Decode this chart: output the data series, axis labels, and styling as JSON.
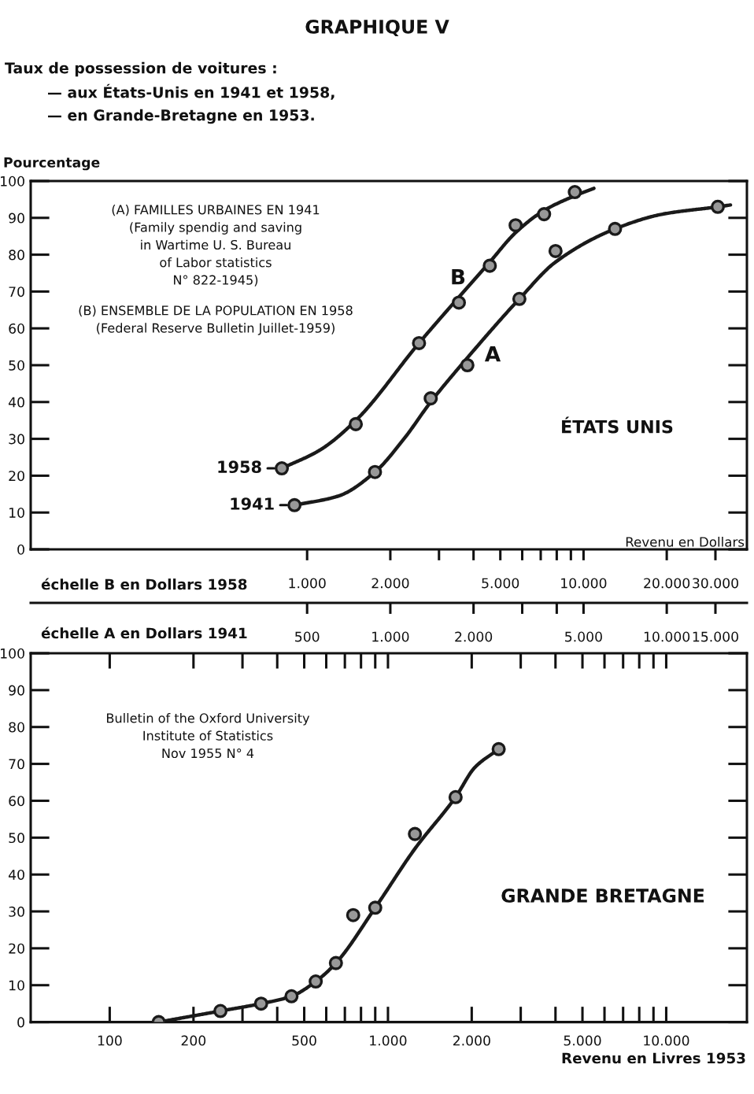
{
  "chart_data": [
    {
      "type": "line",
      "title": "GRAPHIQUE V",
      "subtitle": "Taux de possession de voitures :\n— aux États-Unis en 1941 et 1958,\n— en Grande-Bretagne en 1953.",
      "ylabel": "Pourcentage",
      "xlabel": "échelle B en Dollars 1958",
      "annotations": [
        "(A) FAMILLES URBAINES EN 1941\n(Family spendig and saving\nin Wartime U. S. Bureau\nof Labor statistics\nN° 822-1945)",
        "(B) ENSEMBLE DE LA POPULATION EN 1958\n(Federal Reserve Bulletin Juillet-1959)",
        "ÉTATS UNIS",
        "Revenu en Dollars",
        "B"
      ],
      "series": [
        {
          "name": "1958",
          "type": "scatter",
          "color": "#1a1a1a",
          "marker": "circle",
          "x": [
            810,
            1500,
            2540,
            3540,
            4580,
            5680,
            7200,
            9300
          ],
          "values": [
            22,
            34,
            56,
            67,
            77,
            88,
            91,
            97
          ]
        },
        {
          "color": "#1a1a1a",
          "x": [
            810,
            1115,
            1500,
            2540,
            4580,
            5680,
            7200,
            9300,
            10900
          ],
          "values": [
            22,
            27,
            35,
            56,
            78,
            86,
            92,
            96,
            98
          ]
        }
      ],
      "log": "x",
      "xlim": [
        100,
        39000
      ],
      "xticks": [
        {
          "value": 1000,
          "label": "1.000"
        },
        {
          "value": 2000,
          "label": "2.000"
        },
        {
          "value": 3000,
          "label": null
        },
        {
          "value": 4000,
          "label": null
        },
        {
          "value": 5000,
          "label": "5.000"
        },
        {
          "value": 6000,
          "label": null
        },
        {
          "value": 7000,
          "label": null
        },
        {
          "value": 8000,
          "label": null
        },
        {
          "value": 9000,
          "label": null
        },
        {
          "value": 10000,
          "label": "10.000"
        },
        {
          "value": 20000,
          "label": "20.000"
        },
        {
          "value": 30000,
          "label": "30.000"
        }
      ],
      "ylim": [
        0,
        100
      ],
      "yticks": [
        0,
        10,
        20,
        30,
        40,
        50,
        60,
        70,
        80,
        90,
        100
      ]
    },
    {
      "type": "line",
      "xlabel": "échelle A en Dollars 1941",
      "annotations": [
        "A"
      ],
      "series": [
        {
          "name": "1941",
          "type": "scatter",
          "color": "#1a1a1a",
          "marker": "circle",
          "x": [
            450,
            880,
            1400,
            1900,
            2930,
            3960,
            6500,
            15300
          ],
          "values": [
            12,
            21,
            41,
            50,
            68,
            81,
            87,
            93
          ]
        },
        {
          "color": "#1a1a1a",
          "x": [
            450,
            650,
            880,
            1120,
            1400,
            1900,
            2930,
            3960,
            6500,
            9650,
            15300,
            17000
          ],
          "values": [
            12,
            14.5,
            21,
            30,
            40,
            52,
            68,
            78,
            87,
            91,
            93,
            93.5
          ]
        }
      ],
      "log": "x",
      "xlim": [
        50,
        19500
      ],
      "xticks": [
        500,
        {
          "value": 1000,
          "label": "1.000"
        },
        {
          "value": 2000,
          "label": "2.000"
        },
        {
          "value": 3000,
          "label": null
        },
        {
          "value": 4000,
          "label": null
        },
        {
          "value": 5000,
          "label": "5.000"
        },
        {
          "value": 10000,
          "label": "10.000"
        },
        {
          "value": 15000,
          "label": "15.000"
        }
      ],
      "ylim": [
        0,
        100
      ],
      "tick_labels": "x"
    },
    {
      "type": "line",
      "xlabel": "Revenu en Livres 1953",
      "annotations": [
        "Bulletin of the Oxford University\nInstitute of Statistics\nNov 1955 N° 4",
        "GRANDE BRETAGNE"
      ],
      "series": [
        {
          "type": "scatter",
          "color": "#1a1a1a",
          "marker": "circle",
          "x": [
            150,
            250,
            350,
            450,
            550,
            650,
            750,
            900,
            1250,
            1750,
            2500
          ],
          "values": [
            0,
            3,
            5,
            7,
            11,
            16,
            29,
            31,
            51,
            61,
            74
          ]
        },
        {
          "color": "#1a1a1a",
          "x": [
            150,
            250,
            350,
            450,
            550,
            650,
            900,
            1250,
            1750,
            2050,
            2500
          ],
          "values": [
            0,
            3,
            5,
            7,
            11,
            16,
            31,
            47,
            61,
            69,
            74
          ]
        }
      ],
      "log": "x",
      "xlim": [
        52,
        19500
      ],
      "xticks": [
        100,
        200,
        {
          "value": 300,
          "label": null
        },
        {
          "value": 400,
          "label": null
        },
        500,
        {
          "value": 600,
          "label": null
        },
        {
          "value": 700,
          "label": null
        },
        {
          "value": 800,
          "label": null
        },
        {
          "value": 900,
          "label": null
        },
        {
          "value": 1000,
          "label": "1.000"
        },
        {
          "value": 2000,
          "label": "2.000"
        },
        {
          "value": 3000,
          "label": null
        },
        {
          "value": 4000,
          "label": null
        },
        {
          "value": 5000,
          "label": "5.000"
        },
        {
          "value": 6000,
          "label": null
        },
        {
          "value": 7000,
          "label": null
        },
        {
          "value": 8000,
          "label": null
        },
        {
          "value": 9000,
          "label": null
        },
        {
          "value": 10000,
          "label": "10.000"
        }
      ],
      "ylim": [
        0,
        100
      ],
      "yticks": [
        0,
        10,
        20,
        30,
        40,
        50,
        60,
        70,
        80,
        90,
        100
      ]
    }
  ]
}
